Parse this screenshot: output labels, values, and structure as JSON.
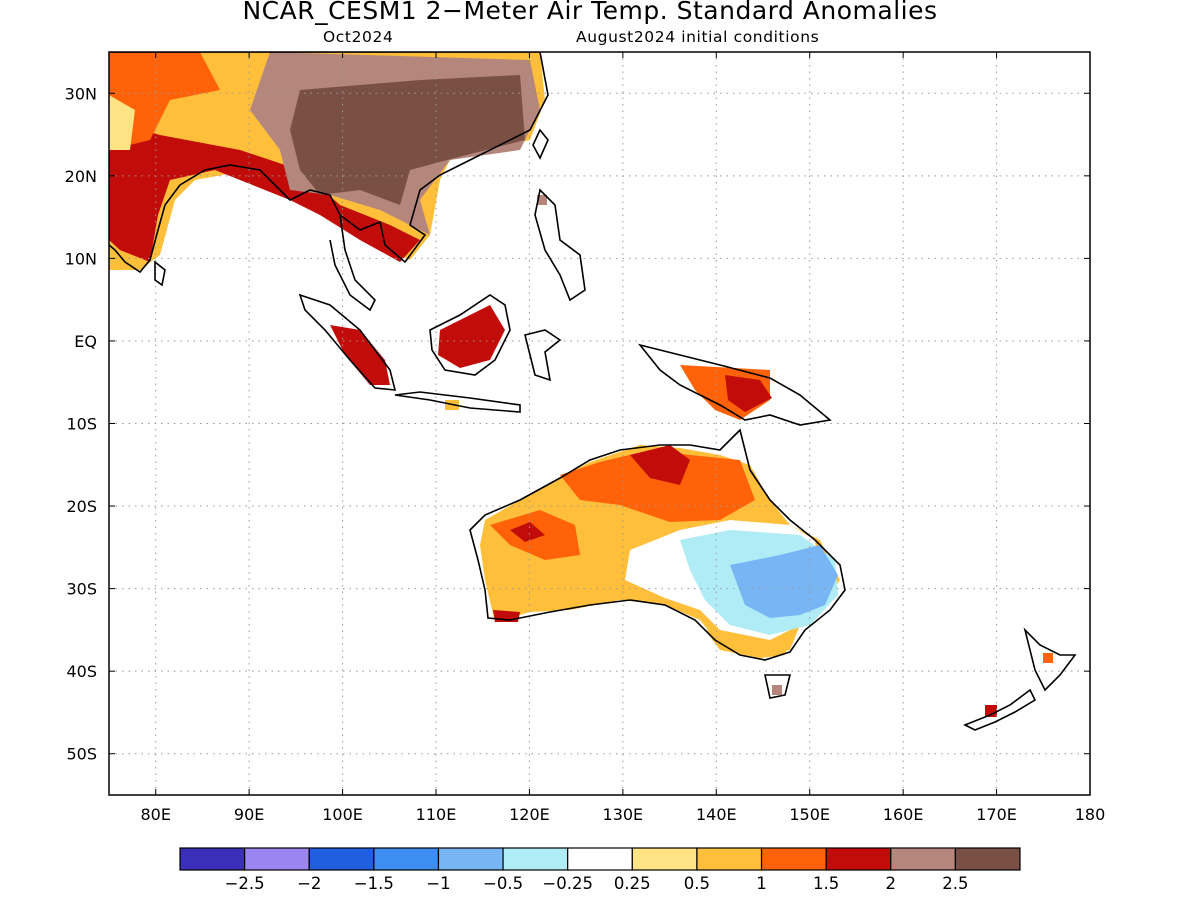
{
  "title": "NCAR_CESM1 2−Meter Air Temp. Standard Anomalies",
  "subtitle_left": "Oct2024",
  "subtitle_right": "August2024 initial conditions",
  "map": {
    "lon_range": [
      75,
      180
    ],
    "lat_range": [
      -55,
      35
    ],
    "lat_labels": [
      {
        "lat": 30,
        "text": "30N"
      },
      {
        "lat": 20,
        "text": "20N"
      },
      {
        "lat": 10,
        "text": "10N"
      },
      {
        "lat": 0,
        "text": "EQ"
      },
      {
        "lat": -10,
        "text": "10S"
      },
      {
        "lat": -20,
        "text": "20S"
      },
      {
        "lat": -30,
        "text": "30S"
      },
      {
        "lat": -40,
        "text": "40S"
      },
      {
        "lat": -50,
        "text": "50S"
      }
    ],
    "lon_labels": [
      {
        "lon": 80,
        "text": "80E"
      },
      {
        "lon": 90,
        "text": "90E"
      },
      {
        "lon": 100,
        "text": "100E"
      },
      {
        "lon": 110,
        "text": "110E"
      },
      {
        "lon": 120,
        "text": "120E"
      },
      {
        "lon": 130,
        "text": "130E"
      },
      {
        "lon": 140,
        "text": "140E"
      },
      {
        "lon": 150,
        "text": "150E"
      },
      {
        "lon": 160,
        "text": "160E"
      },
      {
        "lon": 170,
        "text": "170E"
      },
      {
        "lon": 180,
        "text": "180"
      }
    ],
    "grid": "dotted"
  },
  "legend": {
    "colors": [
      "#3a2fb8",
      "#9b85f2",
      "#1f5fe0",
      "#3d8ef0",
      "#78b5f5",
      "#b0ecf5",
      "#ffffff",
      "#ffe384",
      "#ffbf3a",
      "#ff6208",
      "#c20c0a",
      "#b5877c",
      "#7a5045"
    ],
    "labels": [
      "−2.5",
      "−2",
      "−1.5",
      "−1",
      "−0.5",
      "−0.25",
      "0.25",
      "0.5",
      "1",
      "1.5",
      "2",
      "2.5"
    ]
  }
}
